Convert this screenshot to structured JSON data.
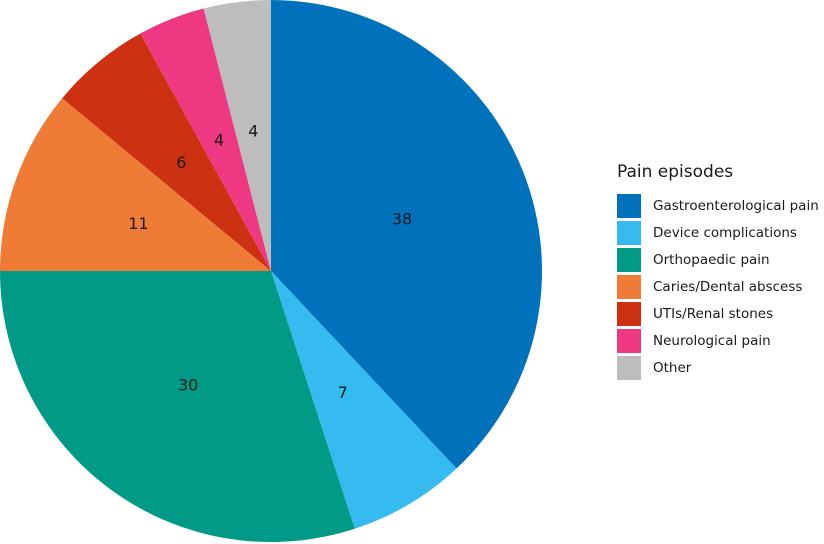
{
  "chart_data": {
    "type": "pie",
    "categories": [
      "Gastroenterological pain",
      "Device complications",
      "Orthopaedic pain",
      "Caries/Dental abscess",
      "UTIs/Renal stones",
      "Neurological pain",
      "Other"
    ],
    "values": [
      38,
      7,
      30,
      11,
      6,
      4,
      4
    ],
    "slice_labels": [
      "38",
      "7",
      "30",
      "11",
      "6",
      "4",
      "4"
    ],
    "colors": [
      "#0072bb",
      "#35bbf0",
      "#009a86",
      "#ee7b36",
      "#cc3212",
      "#ee3882",
      "#bdbdbd"
    ],
    "legend_title": "Pain episodes",
    "legend_placement": "right",
    "start_angle": "12 o'clock",
    "direction": "clockwise"
  }
}
